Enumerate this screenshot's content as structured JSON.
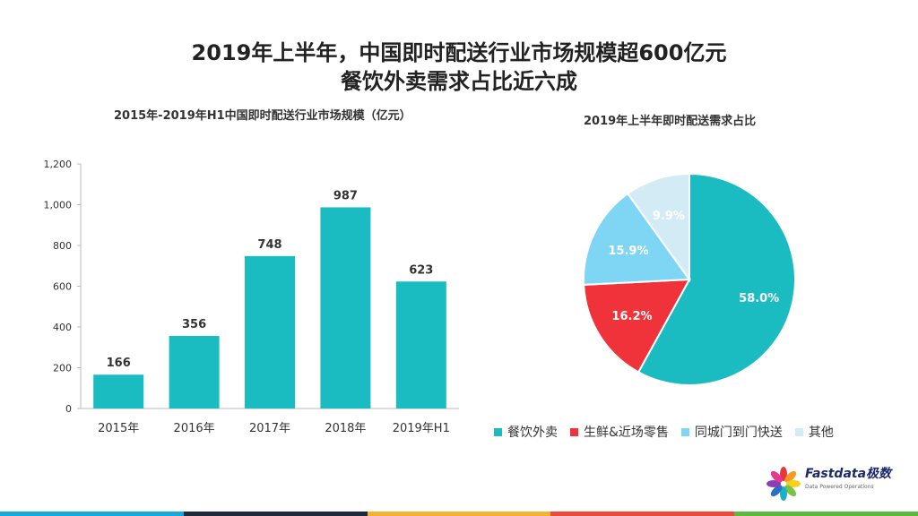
{
  "header": {
    "title_line1": "2019年上半年，中国即时配送行业市场规模超600亿元",
    "title_line2": "餐饮外卖需求占比近六成"
  },
  "chart_data": [
    {
      "type": "bar",
      "title": "2015年-2019年H1中国即时配送行业市场规模（亿元）",
      "categories": [
        "2015年",
        "2016年",
        "2017年",
        "2018年",
        "2019年H1"
      ],
      "values": [
        166,
        356,
        748,
        987,
        623
      ],
      "value_labels": [
        "166",
        "356",
        "748",
        "987",
        "623"
      ],
      "yticks": [
        "0",
        "200",
        "400",
        "600",
        "800",
        "1,000",
        "1,200"
      ],
      "ylim": [
        0,
        1200
      ],
      "color": "#1bbcc1"
    },
    {
      "type": "pie",
      "title": "2019年上半年即时配送需求占比",
      "labels": [
        "餐饮外卖",
        "生鲜&近场零售",
        "同城门到门快送",
        "其他"
      ],
      "values": [
        58.0,
        16.2,
        15.9,
        9.9
      ],
      "value_labels": [
        "58.0%",
        "16.2%",
        "15.9%",
        "9.9%"
      ],
      "colors": [
        "#1bbcc1",
        "#f0333a",
        "#7fd6f4",
        "#d3ebf4"
      ]
    }
  ],
  "logo": {
    "name": "Fastdata极数",
    "tagline": "Data Powered Operations"
  },
  "footer_colors": [
    "#1aa7d9",
    "#1f2a3a",
    "#f2b233",
    "#ea4b3a",
    "#5fb840"
  ]
}
